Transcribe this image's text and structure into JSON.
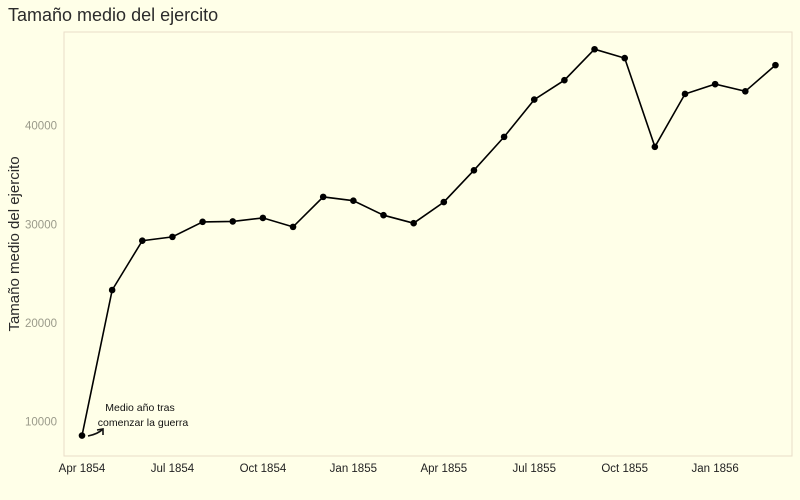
{
  "chart_data": {
    "type": "line",
    "title": "Tamaño medio del ejercito",
    "xlabel": "",
    "ylabel": "Tamaño medio del ejercito",
    "x": [
      "1854-04",
      "1854-05",
      "1854-06",
      "1854-07",
      "1854-08",
      "1854-09",
      "1854-10",
      "1854-11",
      "1854-12",
      "1855-01",
      "1855-02",
      "1855-03",
      "1855-04",
      "1855-05",
      "1855-06",
      "1855-07",
      "1855-08",
      "1855-09",
      "1855-10",
      "1855-11",
      "1855-12",
      "1856-01",
      "1856-02",
      "1856-03"
    ],
    "series": [
      {
        "values": [
          8571,
          23333,
          28333,
          28722,
          30246,
          30290,
          30643,
          29736,
          32779,
          32393,
          30919,
          30107,
          32252,
          35473,
          38863,
          42647,
          44614,
          47751,
          46852,
          37853,
          43217,
          44212,
          43485,
          46140
        ]
      }
    ],
    "ylim": [
      6500,
      49500
    ],
    "yticks": [
      10000,
      20000,
      30000,
      40000
    ],
    "xticks": [
      {
        "label": "Apr 1854",
        "at": "1854-04"
      },
      {
        "label": "Jul 1854",
        "at": "1854-07"
      },
      {
        "label": "Oct 1854",
        "at": "1854-10"
      },
      {
        "label": "Jan 1855",
        "at": "1855-01"
      },
      {
        "label": "Apr 1855",
        "at": "1855-04"
      },
      {
        "label": "Jul 1855",
        "at": "1855-07"
      },
      {
        "label": "Oct 1855",
        "at": "1855-10"
      },
      {
        "label": "Jan 1856",
        "at": "1856-01"
      }
    ],
    "annotation": {
      "lines": [
        "Medio año tras",
        "comenzar  la guerra"
      ],
      "points_to": "1854-04"
    },
    "grid": false,
    "line_color": "#000000",
    "background": "#ffffe8",
    "panel_border_color": "#eadcc8"
  }
}
